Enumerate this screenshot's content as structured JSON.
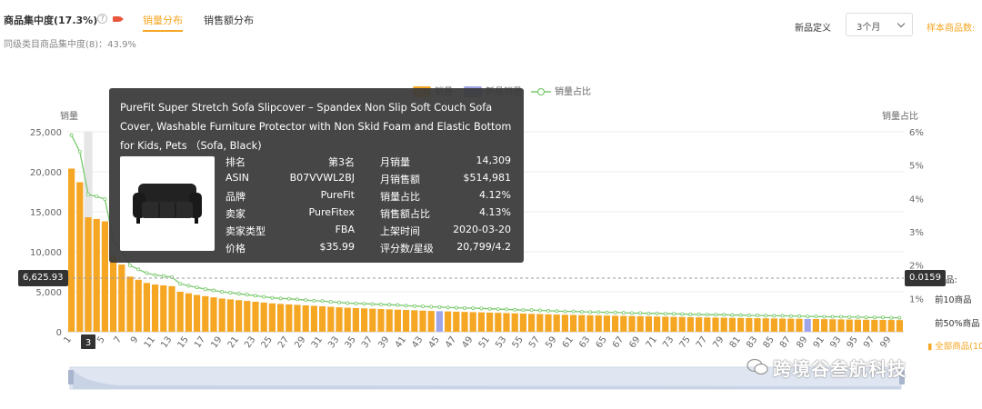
{
  "header": {
    "title": "商品集中度(17.3%)",
    "help_glyph": "?",
    "tabs": [
      {
        "label": "销量分布",
        "active": true
      },
      {
        "label": "销售额分布",
        "active": false
      }
    ],
    "subline": "同级类目商品集中度(8)：43.9%",
    "new_def_label": "新品定义",
    "new_def_value": "3个月",
    "sample_count_label": "样本商品数:"
  },
  "colors": {
    "sales_bar": "#f5a623",
    "new_bar": "#9ea5e8",
    "share_line": "#7bc96f",
    "accent": "#f5a623"
  },
  "chart_data": {
    "type": "bar",
    "legend": [
      "销量",
      "新品销量",
      "销量占比"
    ],
    "ylabel_left": "销量",
    "ylabel_right": "销量占比",
    "ylim_left": [
      0,
      25000
    ],
    "yticks_left": [
      "0",
      "5,000",
      "10,000",
      "15,000",
      "20,000",
      "25,000"
    ],
    "ylim_right": [
      0,
      6
    ],
    "yticks_right": [
      "1%",
      "2%",
      "3%",
      "4%",
      "5%",
      "6%"
    ],
    "x_tick_labels": [
      "1",
      "3",
      "5",
      "7",
      "9",
      "11",
      "13",
      "15",
      "17",
      "19",
      "21",
      "23",
      "25",
      "27",
      "29",
      "31",
      "33",
      "35",
      "37",
      "39",
      "41",
      "43",
      "45",
      "47",
      "49",
      "51",
      "53",
      "55",
      "57",
      "59",
      "61",
      "63",
      "65",
      "67",
      "69",
      "71",
      "73",
      "75",
      "77",
      "79",
      "81",
      "83",
      "85",
      "87",
      "89",
      "91",
      "93",
      "95",
      "97",
      "99"
    ],
    "highlight_rank": 3,
    "new_product_ranks": [
      45,
      89
    ],
    "sales": [
      20400,
      18700,
      14309,
      14100,
      13800,
      9500,
      8400,
      6900,
      6500,
      6100,
      5900,
      5800,
      5700,
      5000,
      4800,
      4600,
      4450,
      4300,
      4150,
      4050,
      3950,
      3850,
      3750,
      3650,
      3550,
      3480,
      3420,
      3360,
      3300,
      3240,
      3180,
      3120,
      3060,
      3000,
      2960,
      2920,
      2880,
      2840,
      2800,
      2760,
      2720,
      2680,
      2640,
      2600,
      2570,
      2540,
      2510,
      2480,
      2450,
      2420,
      2390,
      2360,
      2330,
      2300,
      2270,
      2240,
      2210,
      2180,
      2150,
      2120,
      2100,
      2080,
      2060,
      2040,
      2020,
      2000,
      1980,
      1960,
      1940,
      1920,
      1900,
      1880,
      1860,
      1840,
      1820,
      1800,
      1785,
      1770,
      1755,
      1740,
      1725,
      1710,
      1695,
      1680,
      1665,
      1650,
      1635,
      1620,
      1605,
      1590,
      1575,
      1560,
      1545,
      1530,
      1515,
      1500,
      1490,
      1480,
      1470,
      1460
    ],
    "share_pct": [
      5.9,
      5.4,
      4.12,
      4.06,
      3.98,
      2.74,
      2.42,
      1.99,
      1.87,
      1.76,
      1.7,
      1.67,
      1.64,
      1.44,
      1.38,
      1.33,
      1.28,
      1.24,
      1.2,
      1.17,
      1.14,
      1.11,
      1.08,
      1.05,
      1.02,
      1.0,
      0.99,
      0.97,
      0.95,
      0.93,
      0.92,
      0.9,
      0.88,
      0.86,
      0.85,
      0.84,
      0.83,
      0.82,
      0.81,
      0.8,
      0.78,
      0.77,
      0.76,
      0.75,
      0.74,
      0.73,
      0.72,
      0.71,
      0.71,
      0.7,
      0.69,
      0.68,
      0.67,
      0.66,
      0.65,
      0.65,
      0.64,
      0.63,
      0.62,
      0.61,
      0.61,
      0.6,
      0.59,
      0.59,
      0.58,
      0.58,
      0.57,
      0.56,
      0.56,
      0.55,
      0.55,
      0.54,
      0.54,
      0.53,
      0.52,
      0.52,
      0.51,
      0.51,
      0.51,
      0.5,
      0.5,
      0.49,
      0.49,
      0.48,
      0.48,
      0.48,
      0.47,
      0.47,
      0.46,
      0.46,
      0.45,
      0.45,
      0.45,
      0.44,
      0.44,
      0.43,
      0.43,
      0.43,
      0.42,
      0.42
    ],
    "crosshair_left_value": "6,625.93",
    "crosshair_right_value": "0.0159"
  },
  "tooltip": {
    "title": "PureFit Super Stretch Sofa Slipcover – Spandex Non Slip Soft Couch Sofa Cover, Washable Furniture Protector with Non Skid Foam and Elastic Bottom for Kids, Pets （Sofa, Black)",
    "image_icon": "sofa-icon",
    "rows": [
      {
        "k1": "排名",
        "v1": "第3名",
        "k2": "月销量",
        "v2": "14,309"
      },
      {
        "k1": "ASIN",
        "v1": "B07VVWL2BJ",
        "k2": "月销售额",
        "v2": "$514,981"
      },
      {
        "k1": "品牌",
        "v1": "PureFit",
        "k2": "销量占比",
        "v2": "4.12%"
      },
      {
        "k1": "卖家",
        "v1": "PureFitex",
        "k2": "销售额占比",
        "v2": "4.13%"
      },
      {
        "k1": "卖家类型",
        "v1": "FBA",
        "k2": "上架时间",
        "v2": "2020-03-20"
      },
      {
        "k1": "价格",
        "v1": "$35.99",
        "k2": "评分数/星级",
        "v2": "20,799/4.2"
      }
    ]
  },
  "right_legend": [
    {
      "label": "前10商品",
      "style": "plain"
    },
    {
      "label": "前50%商品",
      "style": "plain"
    },
    {
      "label": "全部商品(10",
      "style": "orange"
    }
  ],
  "right_partial_label": "品:",
  "watermark": "跨境谷叁航科技"
}
